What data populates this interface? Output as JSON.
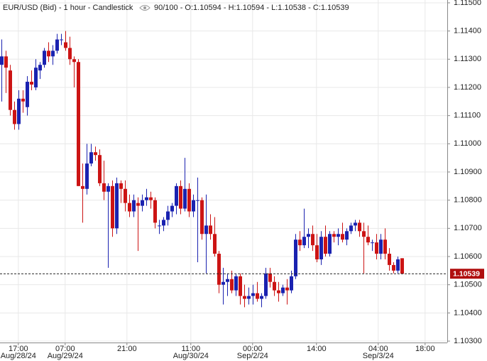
{
  "chart_data": {
    "type": "candlestick",
    "title": "EUR/USD (Bid) - 1 hour - Candlestick",
    "info": "90/100 - O:1.10594 - H:1.10594 - L:1.10538 - C:1.10539",
    "up_color": "#1a22b0",
    "down_color": "#cc1414",
    "grid": true,
    "open": [
      1.1128,
      1.1131,
      1.1126,
      1.1112,
      1.1107,
      1.1116,
      1.1113,
      1.1122,
      1.112,
      1.1126,
      1.1128,
      1.1133,
      1.1131,
      1.1133,
      1.1137,
      1.1136,
      1.1134,
      1.113,
      1.1129,
      1.1085,
      1.1084,
      1.1093,
      1.1097,
      1.1096,
      1.1086,
      1.1083,
      1.1085,
      1.107,
      1.1086,
      1.1084,
      1.1079,
      1.1076,
      1.1079,
      1.1078,
      1.108,
      1.1081,
      1.108,
      1.1071,
      1.1071,
      1.1073,
      1.1076,
      1.1078,
      1.1085,
      1.1077,
      1.1084,
      1.1076,
      1.108,
      1.108,
      1.1068,
      1.1071,
      1.1068,
      1.1061,
      1.105,
      1.1051,
      1.1052,
      1.1048,
      1.1053,
      1.1046,
      1.1045,
      1.1046,
      1.1047,
      1.1045,
      1.1046,
      1.1054,
      1.1051,
      1.1048,
      1.1047,
      1.1049,
      1.1048,
      1.1053,
      1.1066,
      1.1064,
      1.1067,
      1.1068,
      1.1064,
      1.1059,
      1.1067,
      1.1061,
      1.1068,
      1.1067,
      1.1068,
      1.1066,
      1.1069,
      1.1071,
      1.1072,
      1.1069,
      1.1067,
      1.1065,
      1.1065,
      1.1061,
      1.1066,
      1.1061,
      1.1057,
      1.1055,
      1.10594
    ],
    "high": [
      1.1137,
      1.1133,
      1.1128,
      1.1115,
      1.1119,
      1.1119,
      1.1124,
      1.1126,
      1.113,
      1.1129,
      1.1134,
      1.1136,
      1.1135,
      1.1139,
      1.1139,
      1.114,
      1.1138,
      1.1131,
      1.113,
      1.1093,
      1.11,
      1.11,
      1.1099,
      1.1098,
      1.1094,
      1.1086,
      1.1087,
      1.1088,
      1.1087,
      1.1087,
      1.1082,
      1.1082,
      1.1081,
      1.1082,
      1.1084,
      1.1083,
      1.1081,
      1.1073,
      1.1074,
      1.1078,
      1.1079,
      1.1086,
      1.1087,
      1.1095,
      1.1086,
      1.1082,
      1.1088,
      1.1081,
      1.1082,
      1.1075,
      1.1074,
      1.1062,
      1.1056,
      1.1054,
      1.1055,
      1.1054,
      1.1054,
      1.105,
      1.1049,
      1.105,
      1.1051,
      1.1047,
      1.1056,
      1.1056,
      1.1053,
      1.1051,
      1.105,
      1.1052,
      1.1055,
      1.1068,
      1.1069,
      1.1077,
      1.107,
      1.1071,
      1.1068,
      1.1069,
      1.1071,
      1.1069,
      1.1069,
      1.107,
      1.1072,
      1.107,
      1.1072,
      1.1073,
      1.1073,
      1.1072,
      1.1071,
      1.1066,
      1.1068,
      1.1068,
      1.107,
      1.1063,
      1.1058,
      1.106,
      1.10594
    ],
    "low": [
      1.1115,
      1.1118,
      1.111,
      1.1105,
      1.1105,
      1.1111,
      1.111,
      1.1119,
      1.1119,
      1.1123,
      1.1127,
      1.1129,
      1.1128,
      1.1132,
      1.1135,
      1.1133,
      1.1128,
      1.112,
      1.1085,
      1.1072,
      1.1082,
      1.1092,
      1.1094,
      1.1085,
      1.108,
      1.1056,
      1.1067,
      1.1068,
      1.1079,
      1.1076,
      1.1074,
      1.1074,
      1.1062,
      1.1076,
      1.1078,
      1.1077,
      1.107,
      1.1068,
      1.1069,
      1.1071,
      1.1074,
      1.1075,
      1.1075,
      1.1076,
      1.1074,
      1.1074,
      1.1058,
      1.1066,
      1.1054,
      1.1066,
      1.106,
      1.1047,
      1.1043,
      1.1046,
      1.1047,
      1.1046,
      1.1043,
      1.1042,
      1.1043,
      1.1043,
      1.1044,
      1.1042,
      1.1045,
      1.1049,
      1.1046,
      1.1044,
      1.1046,
      1.1043,
      1.1047,
      1.1052,
      1.1062,
      1.1063,
      1.1063,
      1.1062,
      1.1058,
      1.1057,
      1.106,
      1.106,
      1.1065,
      1.1064,
      1.1065,
      1.1064,
      1.1068,
      1.1069,
      1.1067,
      1.1054,
      1.1064,
      1.1062,
      1.1059,
      1.1059,
      1.1059,
      1.1055,
      1.1054,
      1.1054,
      1.10538
    ],
    "close": [
      1.1131,
      1.1127,
      1.1112,
      1.1107,
      1.1116,
      1.1115,
      1.1122,
      1.1121,
      1.1127,
      1.1128,
      1.1133,
      1.1131,
      1.1133,
      1.1137,
      1.1137,
      1.1134,
      1.113,
      1.1129,
      1.1085,
      1.1084,
      1.1093,
      1.1097,
      1.1096,
      1.1086,
      1.1083,
      1.1085,
      1.107,
      1.1086,
      1.1084,
      1.1079,
      1.1076,
      1.108,
      1.1078,
      1.108,
      1.1081,
      1.108,
      1.1072,
      1.1071,
      1.1073,
      1.1076,
      1.1078,
      1.1085,
      1.1077,
      1.1084,
      1.1076,
      1.108,
      1.108,
      1.1068,
      1.1071,
      1.1068,
      1.1061,
      1.105,
      1.1051,
      1.1052,
      1.1048,
      1.1053,
      1.1046,
      1.1045,
      1.1046,
      1.1047,
      1.1045,
      1.1046,
      1.1054,
      1.1051,
      1.1048,
      1.1047,
      1.1049,
      1.1048,
      1.1053,
      1.1066,
      1.1064,
      1.1067,
      1.1068,
      1.1064,
      1.1059,
      1.1067,
      1.1061,
      1.1068,
      1.1067,
      1.1068,
      1.1066,
      1.1069,
      1.1071,
      1.1072,
      1.1069,
      1.1067,
      1.1065,
      1.1065,
      1.1061,
      1.1066,
      1.1061,
      1.1057,
      1.1055,
      1.1059,
      1.10539
    ],
    "xlim": [
      -0.3,
      104.7
    ],
    "xticks": [
      {
        "value": 4,
        "label": "17:00",
        "date": "Aug/28/24"
      },
      {
        "value": 15,
        "label": "07:00",
        "date": "Aug/29/24"
      },
      {
        "value": 29.5,
        "label": "21:00"
      },
      {
        "value": 44.5,
        "label": "11:00",
        "date": "Aug/30/24"
      },
      {
        "value": 59,
        "label": "00:00",
        "date": "Sep/2/24"
      },
      {
        "value": 74,
        "label": "14:00"
      },
      {
        "value": 88.5,
        "label": "04:00",
        "date": "Sep/3/24"
      },
      {
        "value": 99.5,
        "label": "18:00"
      }
    ],
    "ylim": [
      1.10295,
      1.1151
    ],
    "yticks": [
      {
        "value": 1.115,
        "label": "1.11500"
      },
      {
        "value": 1.114,
        "label": "1.11400"
      },
      {
        "value": 1.113,
        "label": "1.11300"
      },
      {
        "value": 1.112,
        "label": "1.11200"
      },
      {
        "value": 1.111,
        "label": "1.11100"
      },
      {
        "value": 1.11,
        "label": "1.11000"
      },
      {
        "value": 1.109,
        "label": "1.10900"
      },
      {
        "value": 1.108,
        "label": "1.10800"
      },
      {
        "value": 1.107,
        "label": "1.10700"
      },
      {
        "value": 1.106,
        "label": "1.10600"
      },
      {
        "value": 1.105,
        "label": "1.10500"
      },
      {
        "value": 1.104,
        "label": "1.10400"
      },
      {
        "value": 1.103,
        "label": "1.10300"
      }
    ],
    "last_price": {
      "value": 1.10539,
      "label": "1.10539",
      "color": "#b00e0e"
    }
  }
}
